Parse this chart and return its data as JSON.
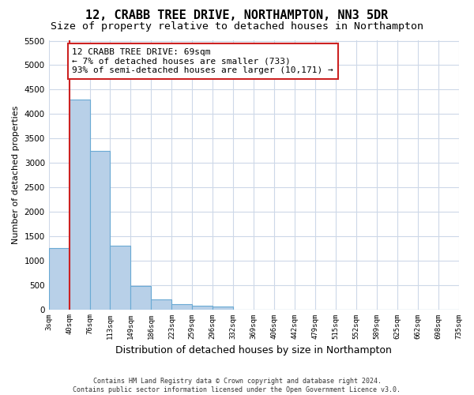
{
  "title": "12, CRABB TREE DRIVE, NORTHAMPTON, NN3 5DR",
  "subtitle": "Size of property relative to detached houses in Northampton",
  "xlabel": "Distribution of detached houses by size in Northampton",
  "ylabel": "Number of detached properties",
  "footer_line1": "Contains HM Land Registry data © Crown copyright and database right 2024.",
  "footer_line2": "Contains public sector information licensed under the Open Government Licence v3.0.",
  "bar_values": [
    1250,
    4300,
    3250,
    1300,
    480,
    200,
    100,
    70,
    50,
    0,
    0,
    0,
    0,
    0,
    0,
    0,
    0,
    0,
    0,
    0
  ],
  "bin_labels": [
    "3sqm",
    "40sqm",
    "76sqm",
    "113sqm",
    "149sqm",
    "186sqm",
    "223sqm",
    "259sqm",
    "296sqm",
    "332sqm",
    "369sqm",
    "406sqm",
    "442sqm",
    "479sqm",
    "515sqm",
    "552sqm",
    "589sqm",
    "625sqm",
    "662sqm",
    "698sqm",
    "735sqm"
  ],
  "bar_color": "#b8d0e8",
  "bar_edge_color": "#6aaad4",
  "grid_color": "#cdd8e8",
  "property_line_color": "#cc2222",
  "annotation_text": "12 CRABB TREE DRIVE: 69sqm\n← 7% of detached houses are smaller (733)\n93% of semi-detached houses are larger (10,171) →",
  "annotation_box_color": "#cc2222",
  "ylim": [
    0,
    5500
  ],
  "yticks": [
    0,
    500,
    1000,
    1500,
    2000,
    2500,
    3000,
    3500,
    4000,
    4500,
    5000,
    5500
  ],
  "background_color": "#ffffff",
  "title_fontsize": 11,
  "subtitle_fontsize": 9.5,
  "annotation_fontsize": 8,
  "ylabel_fontsize": 8,
  "xlabel_fontsize": 9
}
